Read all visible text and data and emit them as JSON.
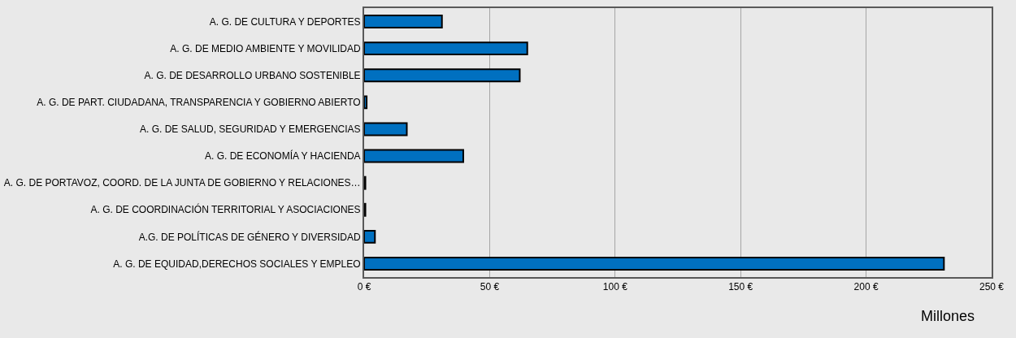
{
  "chart_data": {
    "type": "bar",
    "orientation": "horizontal",
    "xlabel": "Millones",
    "categories": [
      "A. G. DE CULTURA Y DEPORTES",
      "A. G. DE MEDIO AMBIENTE Y MOVILIDAD",
      "A. G. DE DESARROLLO URBANO SOSTENIBLE",
      "A. G. DE PART. CIUDADANA, TRANSPARENCIA Y GOBIERNO ABIERTO",
      "A. G. DE SALUD, SEGURIDAD Y EMERGENCIAS",
      "A. G. DE ECONOMÍA Y HACIENDA",
      "A. G. DE PORTAVOZ, COORD. DE LA JUNTA DE GOBIERNO Y RELACIONES…",
      "A. G. DE COORDINACIÓN TERRITORIAL Y ASOCIACIONES",
      "A.G. DE POLÍTICAS DE GÉNERO Y DIVERSIDAD",
      "A. G. DE EQUIDAD,DERECHOS SOCIALES Y EMPLEO"
    ],
    "values": [
      31,
      65,
      62,
      1,
      17,
      39.5,
      0.5,
      0.5,
      4.3,
      231
    ],
    "color": "#0070c0",
    "xlim": [
      0,
      250
    ],
    "xticks": [
      {
        "value": 0,
        "label": "0 €"
      },
      {
        "value": 50,
        "label": "50 €"
      },
      {
        "value": 100,
        "label": "100 €"
      },
      {
        "value": 150,
        "label": "150 €"
      },
      {
        "value": 200,
        "label": "200 €"
      },
      {
        "value": 250,
        "label": "250 €"
      }
    ],
    "grid": "x"
  }
}
